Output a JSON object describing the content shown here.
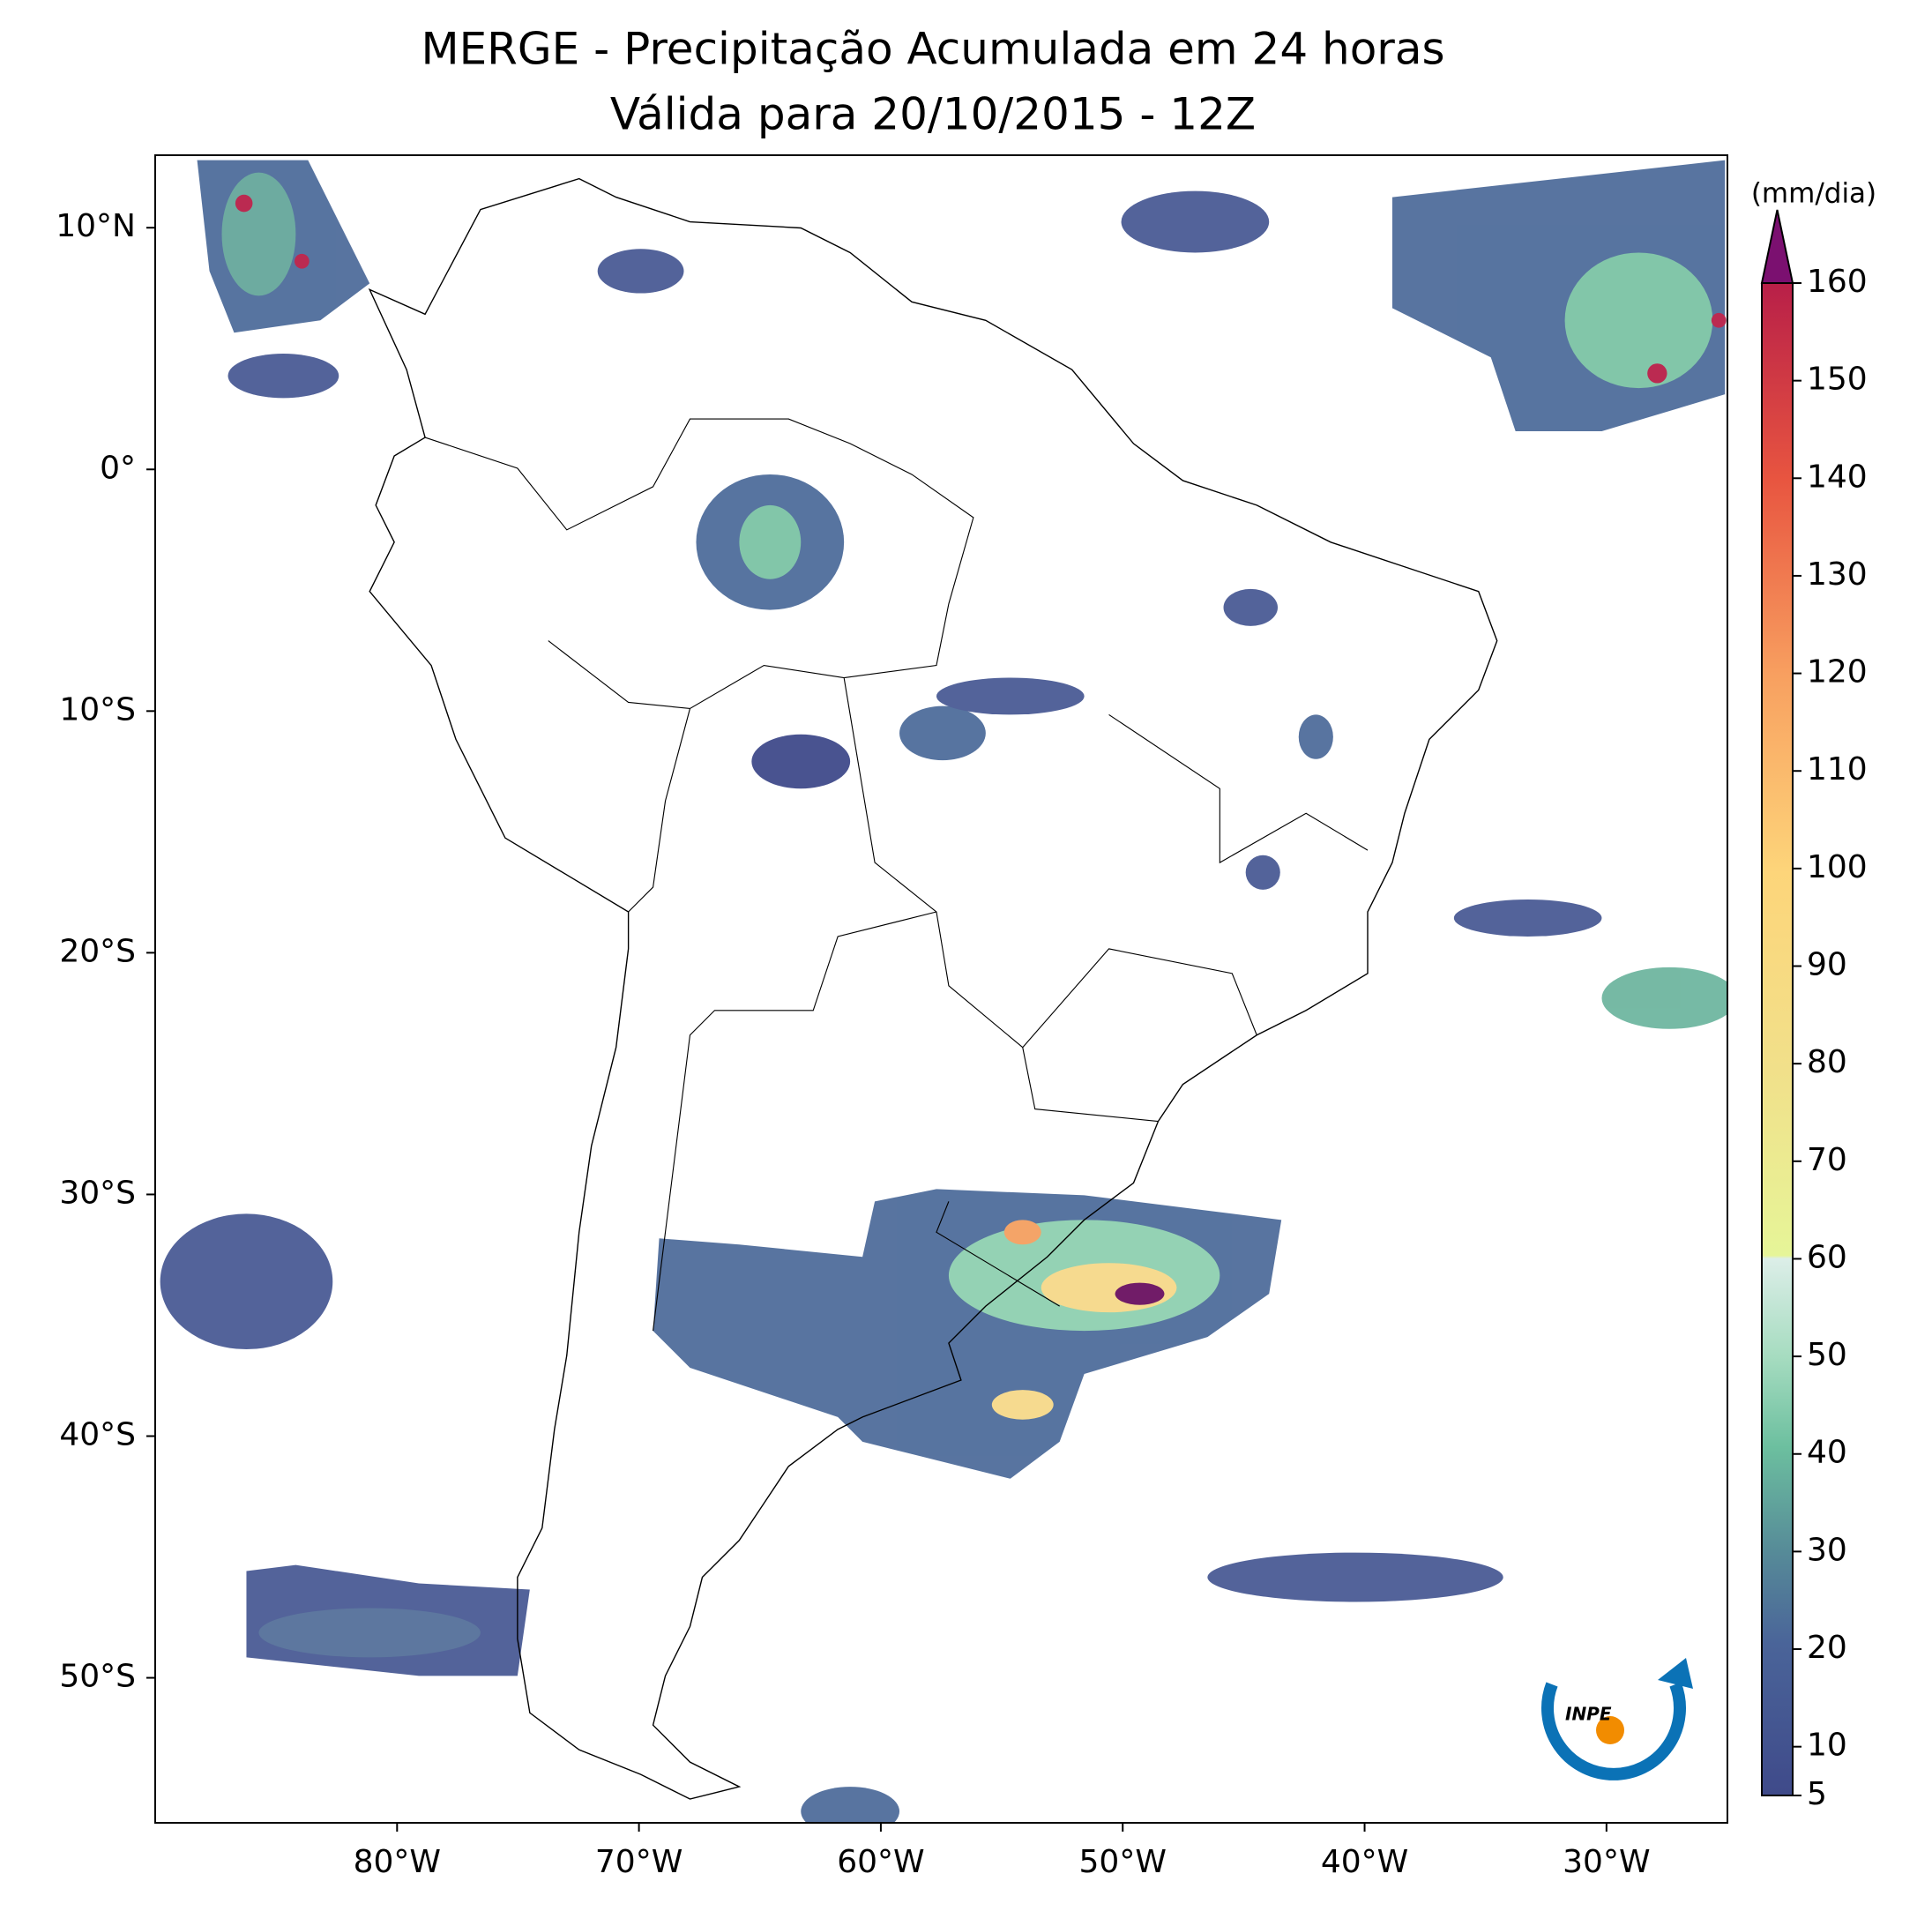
{
  "map": {
    "title": [
      "MERGE - Precipitação Acumulada em 24 horas",
      "Válida para 20/10/2015 - 12Z"
    ],
    "xlim": [
      -90,
      -25
    ],
    "ylim": [
      -56,
      13
    ],
    "xticks": [
      {
        "value": -80,
        "label": "80°W"
      },
      {
        "value": -70,
        "label": "70°W"
      },
      {
        "value": -60,
        "label": "60°W"
      },
      {
        "value": -50,
        "label": "50°W"
      },
      {
        "value": -40,
        "label": "40°W"
      },
      {
        "value": -30,
        "label": "30°W"
      }
    ],
    "yticks": [
      {
        "value": 10,
        "label": "10°N"
      },
      {
        "value": 0,
        "label": "0°"
      },
      {
        "value": -10,
        "label": "10°S"
      },
      {
        "value": -20,
        "label": "20°S"
      },
      {
        "value": -30,
        "label": "30°S"
      },
      {
        "value": -40,
        "label": "40°S"
      },
      {
        "value": -50,
        "label": "50°S"
      }
    ],
    "colorbar": {
      "label": "(mm/dia)",
      "lim": [
        5,
        160
      ],
      "ticks": [
        5,
        10,
        20,
        30,
        40,
        50,
        60,
        70,
        80,
        90,
        100,
        110,
        120,
        130,
        140,
        150,
        160
      ]
    },
    "logo": "INPE"
  }
}
